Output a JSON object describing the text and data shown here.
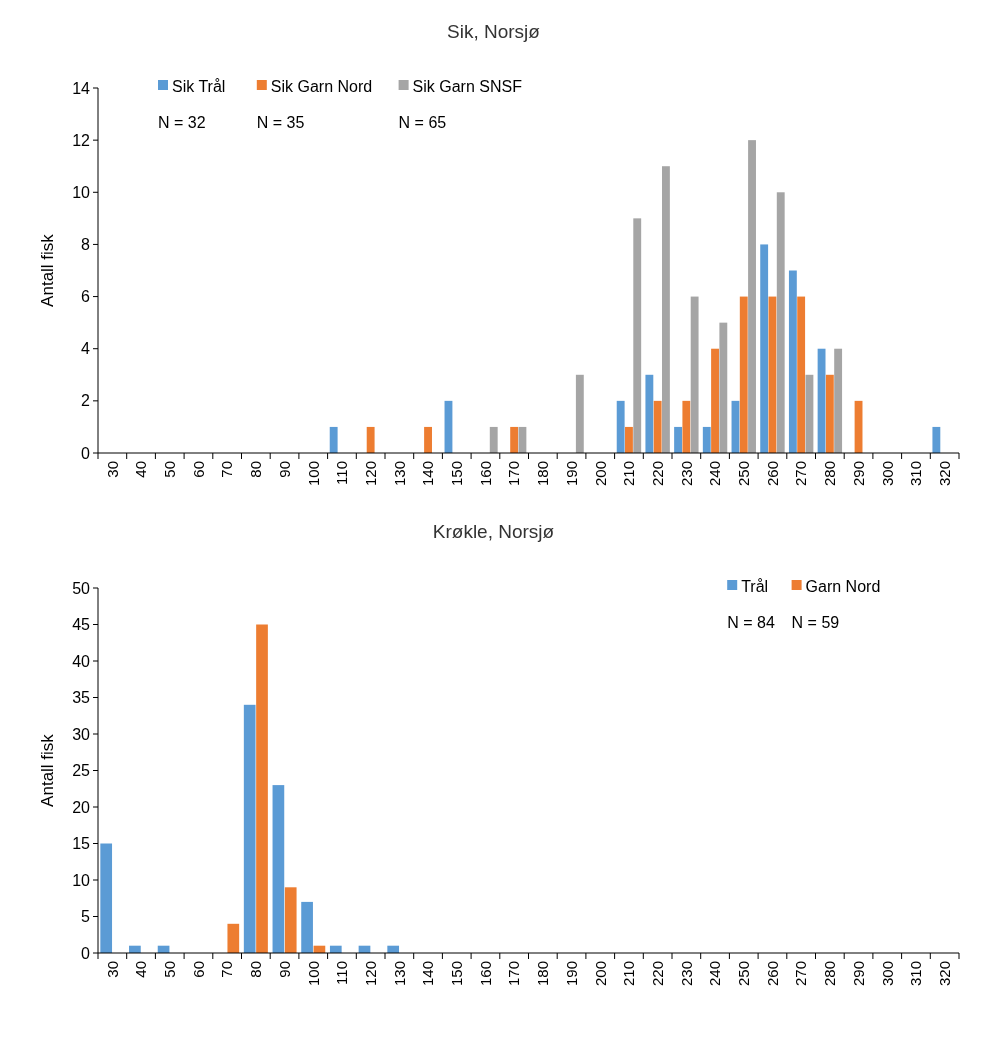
{
  "chart_data": [
    {
      "type": "bar",
      "title": "Sik, Norsjø",
      "ylabel": "Antall fisk",
      "categories": [
        "30",
        "40",
        "50",
        "60",
        "70",
        "80",
        "90",
        "100",
        "110",
        "120",
        "130",
        "140",
        "150",
        "160",
        "170",
        "180",
        "190",
        "200",
        "210",
        "220",
        "230",
        "240",
        "250",
        "260",
        "270",
        "280",
        "290",
        "300",
        "310",
        "320"
      ],
      "series": [
        {
          "name": "Sik Trål",
          "color": "#5b9bd5",
          "values": [
            0,
            0,
            0,
            0,
            0,
            0,
            0,
            0,
            1,
            0,
            0,
            0,
            2,
            0,
            0,
            0,
            0,
            0,
            2,
            3,
            1,
            1,
            2,
            8,
            7,
            4,
            0,
            0,
            0,
            1
          ]
        },
        {
          "name": "Sik Garn Nord",
          "color": "#ed7d31",
          "values": [
            0,
            0,
            0,
            0,
            0,
            0,
            0,
            0,
            0,
            1,
            0,
            1,
            0,
            0,
            1,
            0,
            0,
            0,
            1,
            2,
            2,
            4,
            6,
            6,
            6,
            3,
            2,
            0,
            0,
            0
          ]
        },
        {
          "name": "Sik Garn SNSF",
          "color": "#a5a5a5",
          "values": [
            0,
            0,
            0,
            0,
            0,
            0,
            0,
            0,
            0,
            0,
            0,
            0,
            0,
            1,
            1,
            0,
            3,
            0,
            9,
            11,
            6,
            5,
            12,
            10,
            3,
            4,
            0,
            0,
            0,
            0
          ]
        }
      ],
      "ylim": [
        0,
        14
      ],
      "yticks": [
        0,
        2,
        4,
        6,
        8,
        10,
        12,
        14
      ],
      "grid": false,
      "legend": "top left",
      "annotations": [
        "N = 32",
        "N = 35",
        "N = 65"
      ]
    },
    {
      "type": "bar",
      "title": "Krøkle, Norsjø",
      "ylabel": "Antall fisk",
      "categories": [
        "30",
        "40",
        "50",
        "60",
        "70",
        "80",
        "90",
        "100",
        "110",
        "120",
        "130",
        "140",
        "150",
        "160",
        "170",
        "180",
        "190",
        "200",
        "210",
        "220",
        "230",
        "240",
        "250",
        "260",
        "270",
        "280",
        "290",
        "300",
        "310",
        "320"
      ],
      "series": [
        {
          "name": "Trål",
          "color": "#5b9bd5",
          "values": [
            15,
            1,
            1,
            0,
            0,
            34,
            23,
            7,
            1,
            1,
            1,
            0,
            0,
            0,
            0,
            0,
            0,
            0,
            0,
            0,
            0,
            0,
            0,
            0,
            0,
            0,
            0,
            0,
            0,
            0
          ]
        },
        {
          "name": "Garn Nord",
          "color": "#ed7d31",
          "values": [
            0,
            0,
            0,
            0,
            4,
            45,
            9,
            1,
            0,
            0,
            0,
            0,
            0,
            0,
            0,
            0,
            0,
            0,
            0,
            0,
            0,
            0,
            0,
            0,
            0,
            0,
            0,
            0,
            0,
            0
          ]
        }
      ],
      "ylim": [
        0,
        50
      ],
      "yticks": [
        0,
        5,
        10,
        15,
        20,
        25,
        30,
        35,
        40,
        45,
        50
      ],
      "grid": false,
      "legend": "top right",
      "annotations": [
        "N = 84",
        "N = 59"
      ]
    }
  ]
}
